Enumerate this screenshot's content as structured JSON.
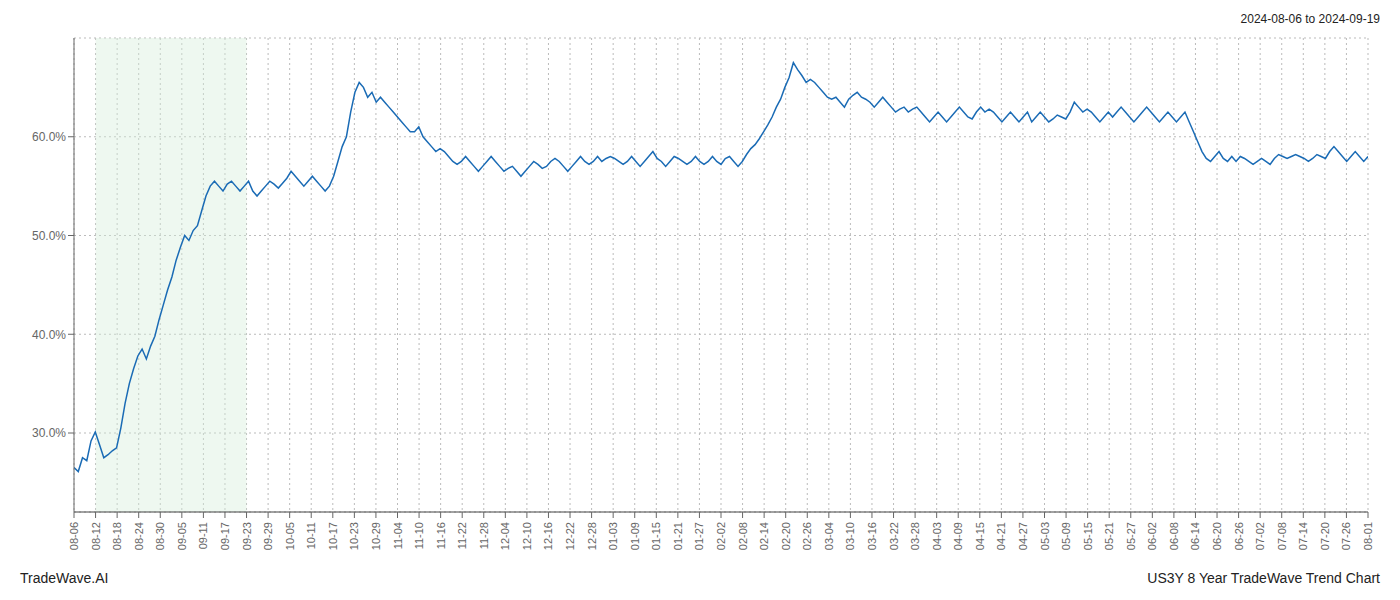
{
  "chart_data": {
    "type": "line",
    "title": "US3Y 8 Year TradeWave Trend Chart",
    "subtitle": "2024-08-06 to 2024-09-19",
    "annotations": [
      "TradeWave.AI"
    ],
    "color": "#1a6bb5",
    "grid": true,
    "shade": {
      "x": [
        1,
        8
      ],
      "color": "#d4edda"
    },
    "xlim": [
      0,
      60
    ],
    "xticks": [
      {
        "value": 0,
        "label": "08-06"
      },
      {
        "value": 1,
        "label": "08-12"
      },
      {
        "value": 2,
        "label": "08-18"
      },
      {
        "value": 3,
        "label": "08-24"
      },
      {
        "value": 4,
        "label": "08-30"
      },
      {
        "value": 5,
        "label": "09-05"
      },
      {
        "value": 6,
        "label": "09-11"
      },
      {
        "value": 7,
        "label": "09-17"
      },
      {
        "value": 8,
        "label": "09-23"
      },
      {
        "value": 9,
        "label": "09-29"
      },
      {
        "value": 10,
        "label": "10-05"
      },
      {
        "value": 11,
        "label": "10-11"
      },
      {
        "value": 12,
        "label": "10-17"
      },
      {
        "value": 13,
        "label": "10-23"
      },
      {
        "value": 14,
        "label": "10-29"
      },
      {
        "value": 15,
        "label": "11-04"
      },
      {
        "value": 16,
        "label": "11-10"
      },
      {
        "value": 17,
        "label": "11-16"
      },
      {
        "value": 18,
        "label": "11-22"
      },
      {
        "value": 19,
        "label": "11-28"
      },
      {
        "value": 20,
        "label": "12-04"
      },
      {
        "value": 21,
        "label": "12-10"
      },
      {
        "value": 22,
        "label": "12-16"
      },
      {
        "value": 23,
        "label": "12-22"
      },
      {
        "value": 24,
        "label": "12-28"
      },
      {
        "value": 25,
        "label": "01-03"
      },
      {
        "value": 26,
        "label": "01-09"
      },
      {
        "value": 27,
        "label": "01-15"
      },
      {
        "value": 28,
        "label": "01-21"
      },
      {
        "value": 29,
        "label": "01-27"
      },
      {
        "value": 30,
        "label": "02-02"
      },
      {
        "value": 31,
        "label": "02-08"
      },
      {
        "value": 32,
        "label": "02-14"
      },
      {
        "value": 33,
        "label": "02-20"
      },
      {
        "value": 34,
        "label": "02-26"
      },
      {
        "value": 35,
        "label": "03-04"
      },
      {
        "value": 36,
        "label": "03-10"
      },
      {
        "value": 37,
        "label": "03-16"
      },
      {
        "value": 38,
        "label": "03-22"
      },
      {
        "value": 39,
        "label": "03-28"
      },
      {
        "value": 40,
        "label": "04-03"
      },
      {
        "value": 41,
        "label": "04-09"
      },
      {
        "value": 42,
        "label": "04-15"
      },
      {
        "value": 43,
        "label": "04-21"
      },
      {
        "value": 44,
        "label": "04-27"
      },
      {
        "value": 45,
        "label": "05-03"
      },
      {
        "value": 46,
        "label": "05-09"
      },
      {
        "value": 47,
        "label": "05-15"
      },
      {
        "value": 48,
        "label": "05-21"
      },
      {
        "value": 49,
        "label": "05-27"
      },
      {
        "value": 50,
        "label": "06-02"
      },
      {
        "value": 51,
        "label": "06-08"
      },
      {
        "value": 52,
        "label": "06-14"
      },
      {
        "value": 53,
        "label": "06-20"
      },
      {
        "value": 54,
        "label": "06-26"
      },
      {
        "value": 55,
        "label": "07-02"
      },
      {
        "value": 56,
        "label": "07-08"
      },
      {
        "value": 57,
        "label": "07-14"
      },
      {
        "value": 58,
        "label": "07-20"
      },
      {
        "value": 59,
        "label": "07-26"
      },
      {
        "value": 60,
        "label": "08-01"
      }
    ],
    "ylim": [
      22,
      70
    ],
    "yticks": [
      {
        "value": 30,
        "label": "30.0%"
      },
      {
        "value": 40,
        "label": "40.0%"
      },
      {
        "value": 50,
        "label": "50.0%"
      },
      {
        "value": 60,
        "label": "60.0%"
      }
    ],
    "values": [
      26.5,
      26.1,
      27.5,
      27.2,
      29.2,
      30.1,
      28.8,
      27.5,
      27.8,
      28.2,
      28.5,
      30.5,
      33.0,
      35.0,
      36.5,
      37.8,
      38.5,
      37.5,
      38.8,
      39.8,
      41.5,
      43.0,
      44.5,
      45.8,
      47.5,
      48.8,
      50.0,
      49.5,
      50.5,
      51.0,
      52.5,
      54.0,
      55.0,
      55.5,
      55.0,
      54.5,
      55.2,
      55.5,
      55.0,
      54.5,
      55.0,
      55.5,
      54.5,
      54.0,
      54.5,
      55.0,
      55.5,
      55.2,
      54.8,
      55.3,
      55.8,
      56.5,
      56.0,
      55.5,
      55.0,
      55.5,
      56.0,
      55.5,
      55.0,
      54.5,
      55.0,
      56.0,
      57.5,
      59.0,
      60.0,
      62.5,
      64.5,
      65.5,
      65.0,
      64.0,
      64.5,
      63.5,
      64.0,
      63.5,
      63.0,
      62.5,
      62.0,
      61.5,
      61.0,
      60.5,
      60.5,
      61.0,
      60.0,
      59.5,
      59.0,
      58.5,
      58.8,
      58.5,
      58.0,
      57.5,
      57.2,
      57.5,
      58.0,
      57.5,
      57.0,
      56.5,
      57.0,
      57.5,
      58.0,
      57.5,
      57.0,
      56.5,
      56.8,
      57.0,
      56.5,
      56.0,
      56.5,
      57.0,
      57.5,
      57.2,
      56.8,
      57.0,
      57.5,
      57.8,
      57.5,
      57.0,
      56.5,
      57.0,
      57.5,
      58.0,
      57.5,
      57.2,
      57.5,
      58.0,
      57.5,
      57.8,
      58.0,
      57.8,
      57.5,
      57.2,
      57.5,
      58.0,
      57.5,
      57.0,
      57.5,
      58.0,
      58.5,
      57.8,
      57.5,
      57.0,
      57.5,
      58.0,
      57.8,
      57.5,
      57.2,
      57.5,
      58.0,
      57.5,
      57.2,
      57.5,
      58.0,
      57.5,
      57.2,
      57.8,
      58.0,
      57.5,
      57.0,
      57.5,
      58.2,
      58.8,
      59.2,
      59.8,
      60.5,
      61.2,
      62.0,
      63.0,
      63.8,
      65.0,
      66.0,
      67.5,
      66.8,
      66.2,
      65.5,
      65.8,
      65.5,
      65.0,
      64.5,
      64.0,
      63.8,
      64.0,
      63.5,
      63.0,
      63.8,
      64.2,
      64.5,
      64.0,
      63.8,
      63.5,
      63.0,
      63.5,
      64.0,
      63.5,
      63.0,
      62.5,
      62.8,
      63.0,
      62.5,
      62.8,
      63.0,
      62.5,
      62.0,
      61.5,
      62.0,
      62.5,
      62.0,
      61.5,
      62.0,
      62.5,
      63.0,
      62.5,
      62.0,
      61.8,
      62.5,
      63.0,
      62.5,
      62.8,
      62.5,
      62.0,
      61.5,
      62.0,
      62.5,
      62.0,
      61.5,
      62.0,
      62.5,
      61.5,
      62.0,
      62.5,
      62.0,
      61.5,
      61.8,
      62.2,
      62.0,
      61.8,
      62.5,
      63.5,
      63.0,
      62.5,
      62.8,
      62.5,
      62.0,
      61.5,
      62.0,
      62.5,
      62.0,
      62.5,
      63.0,
      62.5,
      62.0,
      61.5,
      62.0,
      62.5,
      63.0,
      62.5,
      62.0,
      61.5,
      62.0,
      62.5,
      62.0,
      61.5,
      62.0,
      62.5,
      61.5,
      60.5,
      59.5,
      58.5,
      57.8,
      57.5,
      58.0,
      58.5,
      57.8,
      57.5,
      58.0,
      57.5,
      58.0,
      57.8,
      57.5,
      57.2,
      57.5,
      57.8,
      57.5,
      57.2,
      57.8,
      58.2,
      58.0,
      57.8,
      58.0,
      58.2,
      58.0,
      57.8,
      57.5,
      57.8,
      58.2,
      58.0,
      57.8,
      58.5,
      59.0,
      58.5,
      58.0,
      57.5,
      58.0,
      58.5,
      58.0,
      57.5,
      58.0
    ]
  }
}
